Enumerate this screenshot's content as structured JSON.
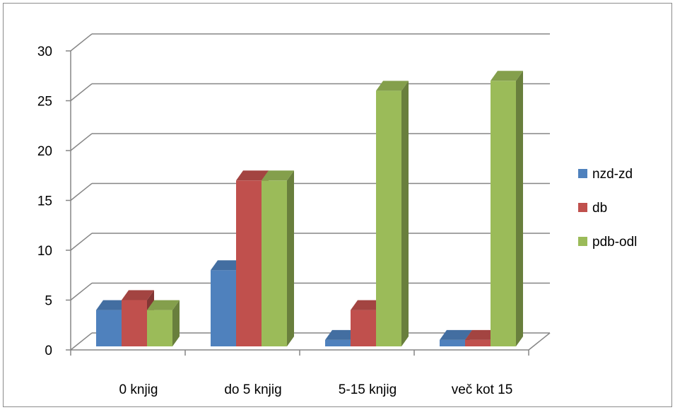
{
  "chart_data": {
    "type": "bar",
    "title": "",
    "xlabel": "",
    "ylabel": "",
    "categories": [
      "0 knjig",
      "do 5 knjig",
      "5-15 knjig",
      "več kot 15"
    ],
    "series": [
      {
        "name": "nzd-zd",
        "values": [
          4,
          8,
          1,
          1
        ],
        "color": "#4F81BD"
      },
      {
        "name": "db",
        "values": [
          5,
          17,
          4,
          1
        ],
        "color": "#C0504D"
      },
      {
        "name": "pdb-odl",
        "values": [
          4,
          17,
          26,
          27
        ],
        "color": "#9BBB59"
      }
    ],
    "ylim": [
      0,
      30
    ],
    "yticks": [
      0,
      5,
      10,
      15,
      20,
      25,
      30
    ],
    "grid": true,
    "legend": "right",
    "style": "3d-clustered-column"
  }
}
